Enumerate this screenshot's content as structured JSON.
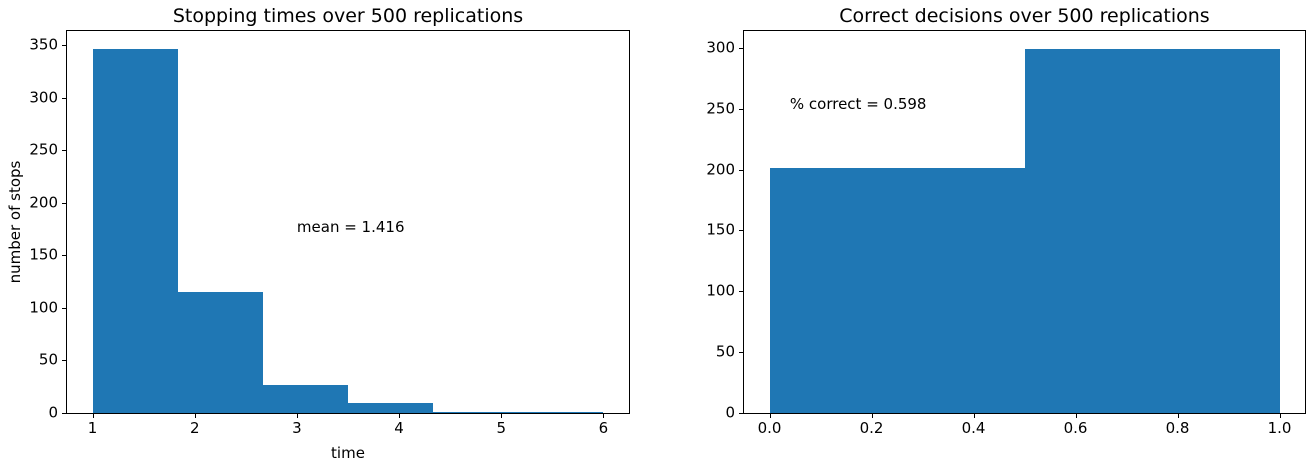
{
  "figure": {
    "background": "#ffffff",
    "bar_color": "#1f77b4",
    "text_color": "#000000",
    "spine_color": "#000000"
  },
  "chart_data": [
    {
      "type": "bar",
      "subtype": "histogram",
      "title": "Stopping times over 500 replications",
      "xlabel": "time",
      "ylabel": "number of stops",
      "bin_edges": [
        1,
        1.8333333,
        2.6666667,
        3.5,
        4.3333333,
        5.1666667,
        6
      ],
      "values": [
        346,
        115,
        27,
        10,
        1,
        1
      ],
      "xlim": [
        0.75,
        6.25
      ],
      "ylim": [
        0,
        363.3
      ],
      "xticks": [
        1,
        2,
        3,
        4,
        5,
        6
      ],
      "xtick_labels": [
        "1",
        "2",
        "3",
        "4",
        "5",
        "6"
      ],
      "yticks": [
        0,
        50,
        100,
        150,
        200,
        250,
        300,
        350
      ],
      "ytick_labels": [
        "0",
        "50",
        "100",
        "150",
        "200",
        "250",
        "300",
        "350"
      ],
      "grid": false,
      "annotation": {
        "text": "mean = 1.416",
        "x": 3.0,
        "y": 177
      }
    },
    {
      "type": "bar",
      "subtype": "histogram",
      "title": "Correct decisions over 500 replications",
      "xlabel": "",
      "ylabel": "",
      "bin_edges": [
        0,
        0.5,
        1.0
      ],
      "values": [
        201,
        299
      ],
      "xlim": [
        -0.05,
        1.05
      ],
      "ylim": [
        0,
        313.95
      ],
      "xticks": [
        0.0,
        0.2,
        0.4,
        0.6,
        0.8,
        1.0
      ],
      "xtick_labels": [
        "0.0",
        "0.2",
        "0.4",
        "0.6",
        "0.8",
        "1.0"
      ],
      "yticks": [
        0,
        50,
        100,
        150,
        200,
        250,
        300
      ],
      "ytick_labels": [
        "0",
        "50",
        "100",
        "150",
        "200",
        "250",
        "300"
      ],
      "grid": false,
      "annotation": {
        "text": "% correct = 0.598",
        "x": 0.04,
        "y": 254
      }
    }
  ]
}
